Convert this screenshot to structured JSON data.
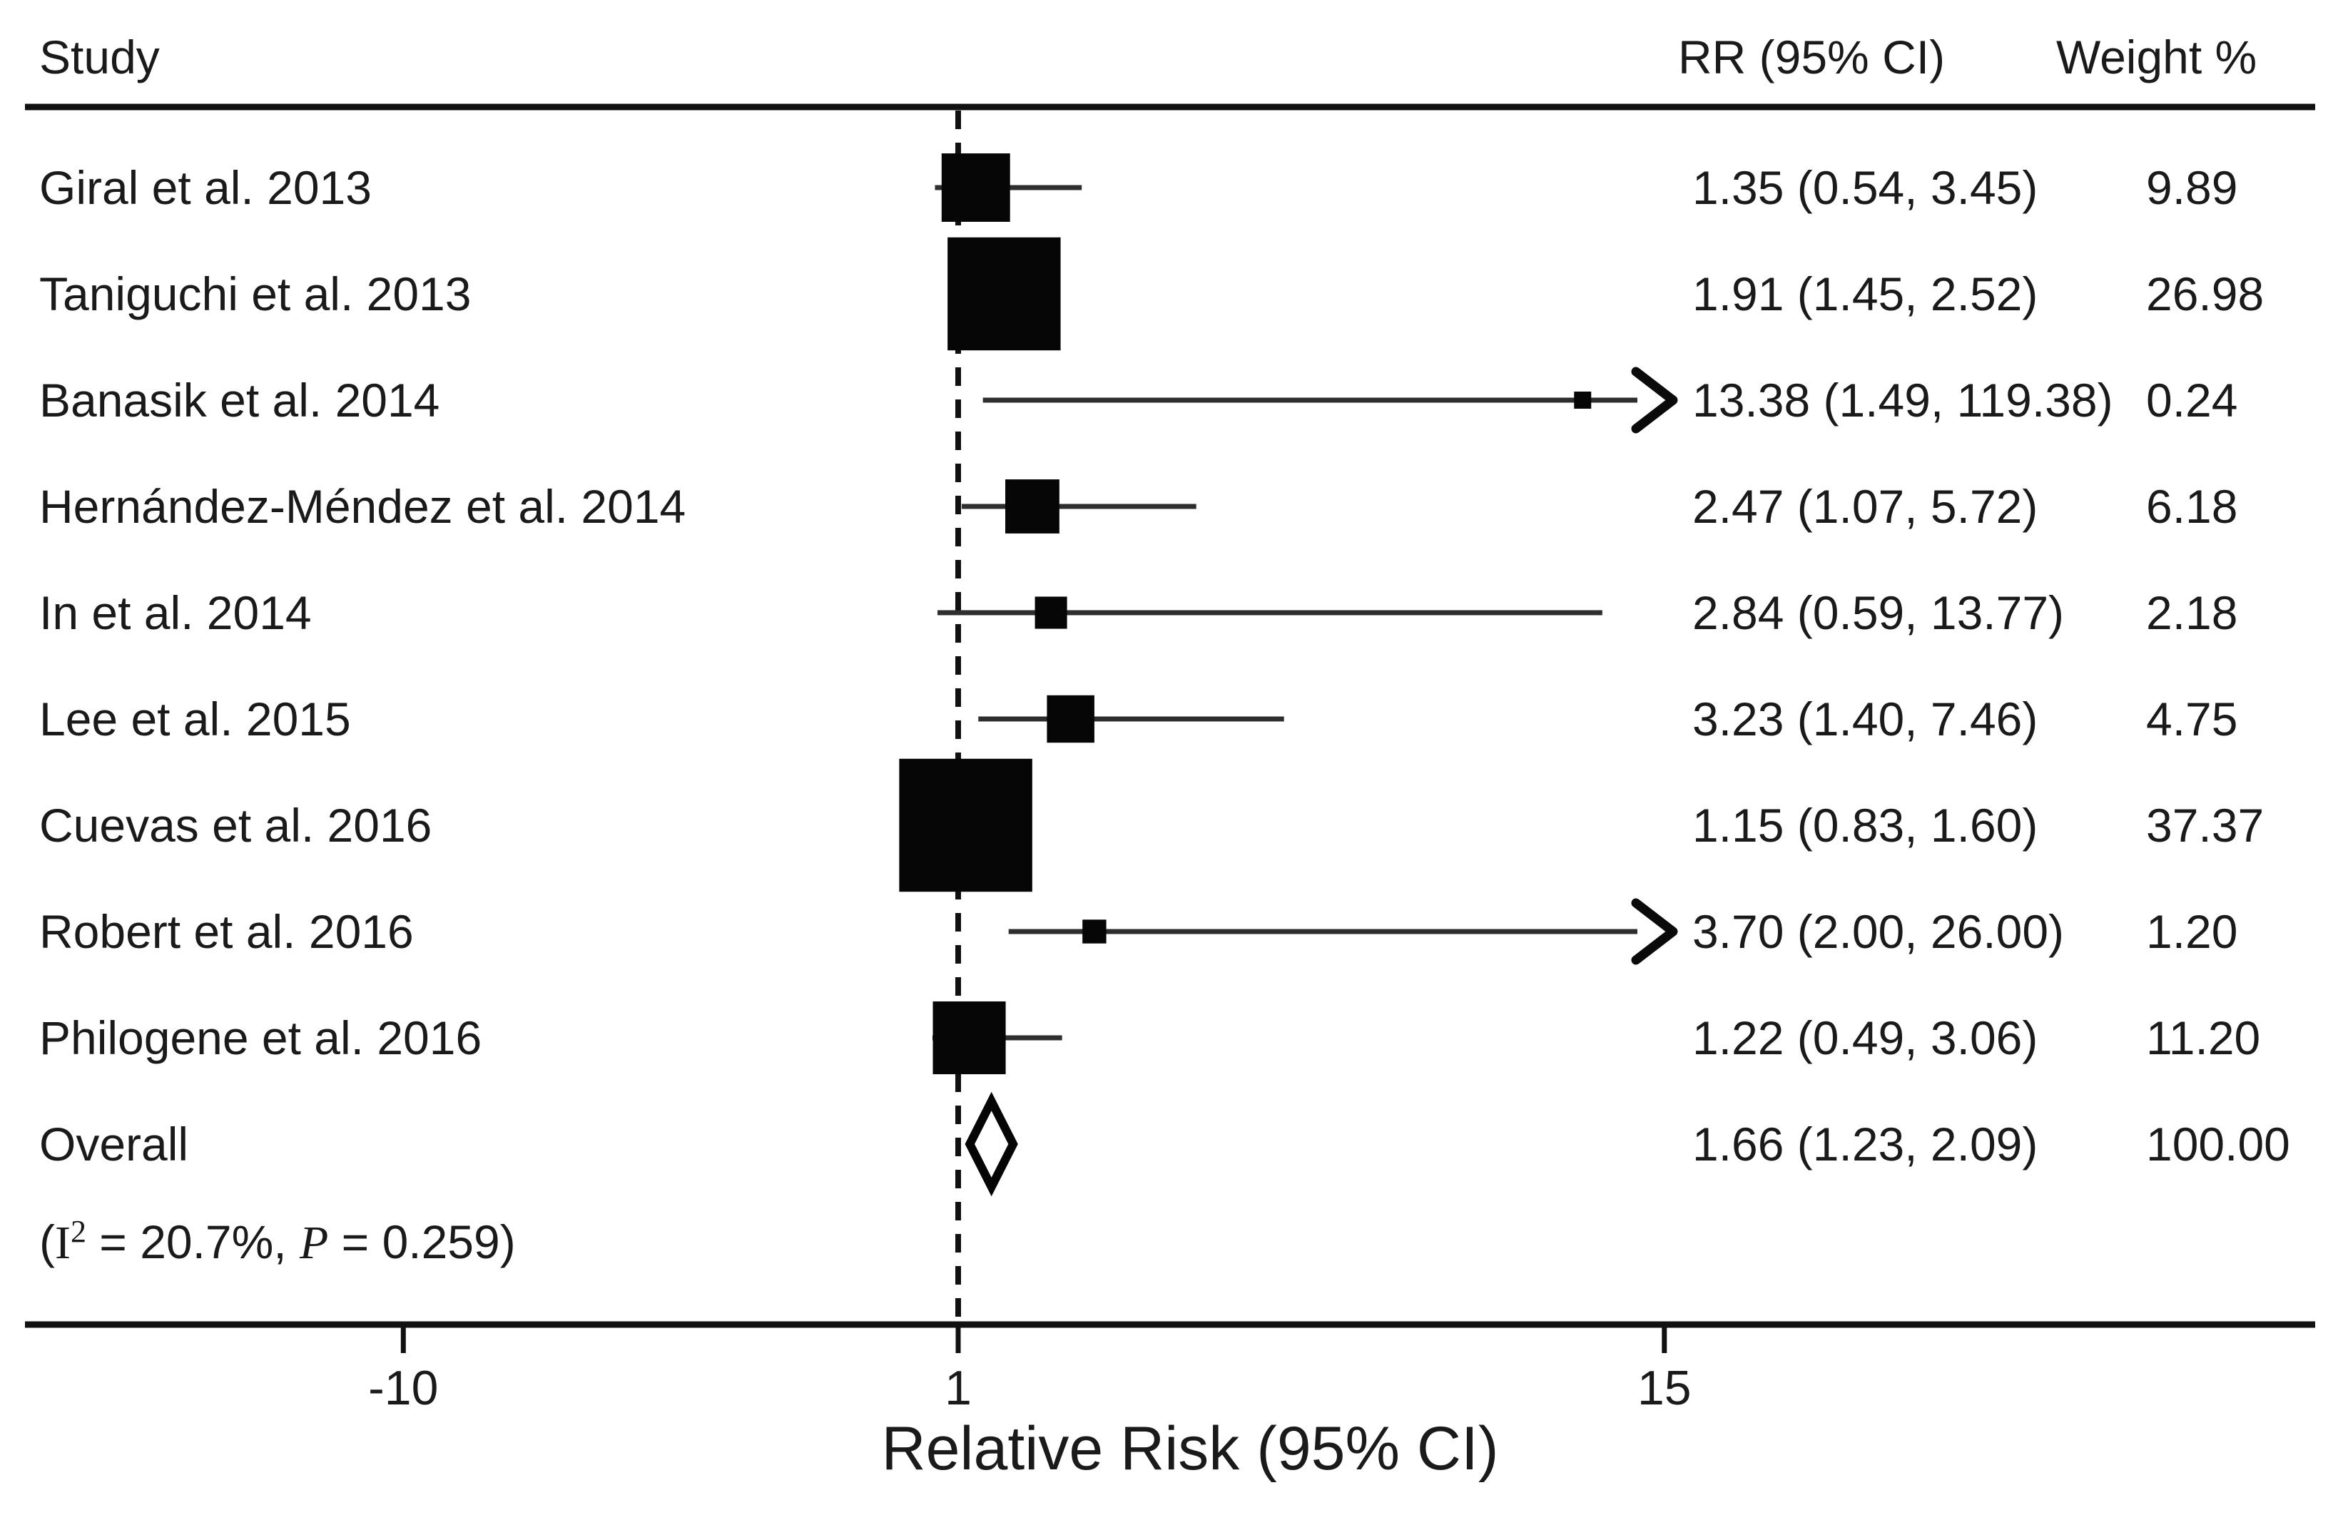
{
  "columns": {
    "study": "Study",
    "rr": "RR (95% CI)",
    "weight": "Weight %"
  },
  "heterogeneity": {
    "open_paren": "(",
    "i_symbol": "I",
    "i_superscript": "2",
    "i_equals": " = ",
    "i_value": "20.7%,",
    "spacer": " ",
    "p_symbol": "P",
    "p_equals": " = ",
    "p_value": "0.259",
    "close_paren": ")"
  },
  "chart_data": {
    "type": "forest",
    "title": "",
    "xlabel": "Relative Risk (95% CI)",
    "x_ticks": [
      -10,
      1,
      15
    ],
    "x_tick_labels": [
      "-10",
      "1",
      "15"
    ],
    "xlim": [
      -18,
      28
    ],
    "reference_line_x": 1,
    "grid": false,
    "heterogeneity_text": "(I2 = 20.7%, P = 0.259)",
    "studies": [
      {
        "label": "Giral et al. 2013",
        "rr": 1.35,
        "ci_low": 0.54,
        "ci_high": 3.45,
        "weight": 9.89,
        "rr_text": "1.35 (0.54, 3.45)",
        "weight_text": "9.89",
        "overall": false
      },
      {
        "label": "Taniguchi et al. 2013",
        "rr": 1.91,
        "ci_low": 1.45,
        "ci_high": 2.52,
        "weight": 26.98,
        "rr_text": "1.91 (1.45, 2.52)",
        "weight_text": "26.98",
        "overall": false
      },
      {
        "label": "Banasik et al. 2014",
        "rr": 13.38,
        "ci_low": 1.49,
        "ci_high": 119.38,
        "weight": 0.24,
        "rr_text": "13.38 (1.49, 119.38)",
        "weight_text": "0.24",
        "overall": false
      },
      {
        "label": "Hernández-Méndez et al. 2014",
        "rr": 2.47,
        "ci_low": 1.07,
        "ci_high": 5.72,
        "weight": 6.18,
        "rr_text": "2.47 (1.07, 5.72)",
        "weight_text": "6.18",
        "overall": false
      },
      {
        "label": "In et al. 2014",
        "rr": 2.84,
        "ci_low": 0.59,
        "ci_high": 13.77,
        "weight": 2.18,
        "rr_text": "2.84 (0.59, 13.77)",
        "weight_text": "2.18",
        "overall": false
      },
      {
        "label": "Lee et al. 2015",
        "rr": 3.23,
        "ci_low": 1.4,
        "ci_high": 7.46,
        "weight": 4.75,
        "rr_text": "3.23 (1.40, 7.46)",
        "weight_text": "4.75",
        "overall": false
      },
      {
        "label": "Cuevas et al. 2016",
        "rr": 1.15,
        "ci_low": 0.83,
        "ci_high": 1.6,
        "weight": 37.37,
        "rr_text": "1.15 (0.83, 1.60)",
        "weight_text": "37.37",
        "overall": false
      },
      {
        "label": "Robert et al. 2016",
        "rr": 3.7,
        "ci_low": 2.0,
        "ci_high": 26.0,
        "weight": 1.2,
        "rr_text": "3.70 (2.00, 26.00)",
        "weight_text": "1.20",
        "overall": false
      },
      {
        "label": "Philogene et al. 2016",
        "rr": 1.22,
        "ci_low": 0.49,
        "ci_high": 3.06,
        "weight": 11.2,
        "rr_text": "1.22 (0.49, 3.06)",
        "weight_text": "11.20",
        "overall": false
      },
      {
        "label": "Overall",
        "rr": 1.66,
        "ci_low": 1.23,
        "ci_high": 2.09,
        "weight": 100.0,
        "rr_text": "1.66 (1.23, 2.09)",
        "weight_text": "100.00",
        "overall": true
      }
    ]
  }
}
